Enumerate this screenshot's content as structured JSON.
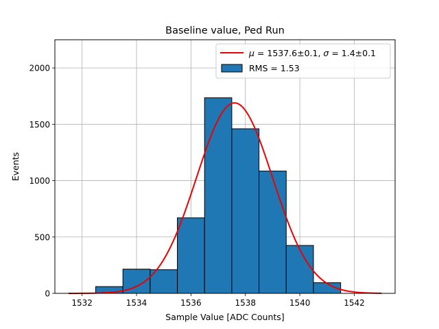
{
  "chart_data": {
    "type": "histogram",
    "title": "Baseline value, Ped Run",
    "xlabel": "Sample Value [ADC Counts]",
    "ylabel": "Events",
    "xlim": [
      1531.0,
      1543.5
    ],
    "ylim": [
      0,
      2250
    ],
    "grid": true,
    "legend_position": "top-right",
    "x_ticks": [
      1532,
      1534,
      1536,
      1538,
      1540,
      1542
    ],
    "y_ticks": [
      0,
      500,
      1000,
      1500,
      2000
    ],
    "bins": [
      {
        "left": 1532.5,
        "right": 1533.5,
        "count": 60
      },
      {
        "left": 1533.5,
        "right": 1534.5,
        "count": 215
      },
      {
        "left": 1534.5,
        "right": 1535.5,
        "count": 210
      },
      {
        "left": 1535.5,
        "right": 1536.5,
        "count": 670
      },
      {
        "left": 1536.5,
        "right": 1537.5,
        "count": 1735
      },
      {
        "left": 1537.5,
        "right": 1538.5,
        "count": 1460
      },
      {
        "left": 1538.5,
        "right": 1539.5,
        "count": 1085
      },
      {
        "left": 1539.5,
        "right": 1540.5,
        "count": 425
      },
      {
        "left": 1540.5,
        "right": 1541.5,
        "count": 95
      }
    ],
    "fit": {
      "type": "gaussian",
      "mu": 1537.6,
      "sigma": 1.4,
      "amplitude": 1690,
      "x_range": [
        1531.5,
        1543.0
      ]
    },
    "series": [
      {
        "name": "gaussian-fit",
        "label_prefix": "μ",
        "label_text": " = 1537.6±0.1, ",
        "label_sigma": "σ",
        "label_text2": " = 1.4±0.1",
        "color": "#ee0000"
      },
      {
        "name": "histogram",
        "label": "RMS = 1.53",
        "color": "#1f77b4"
      }
    ]
  }
}
